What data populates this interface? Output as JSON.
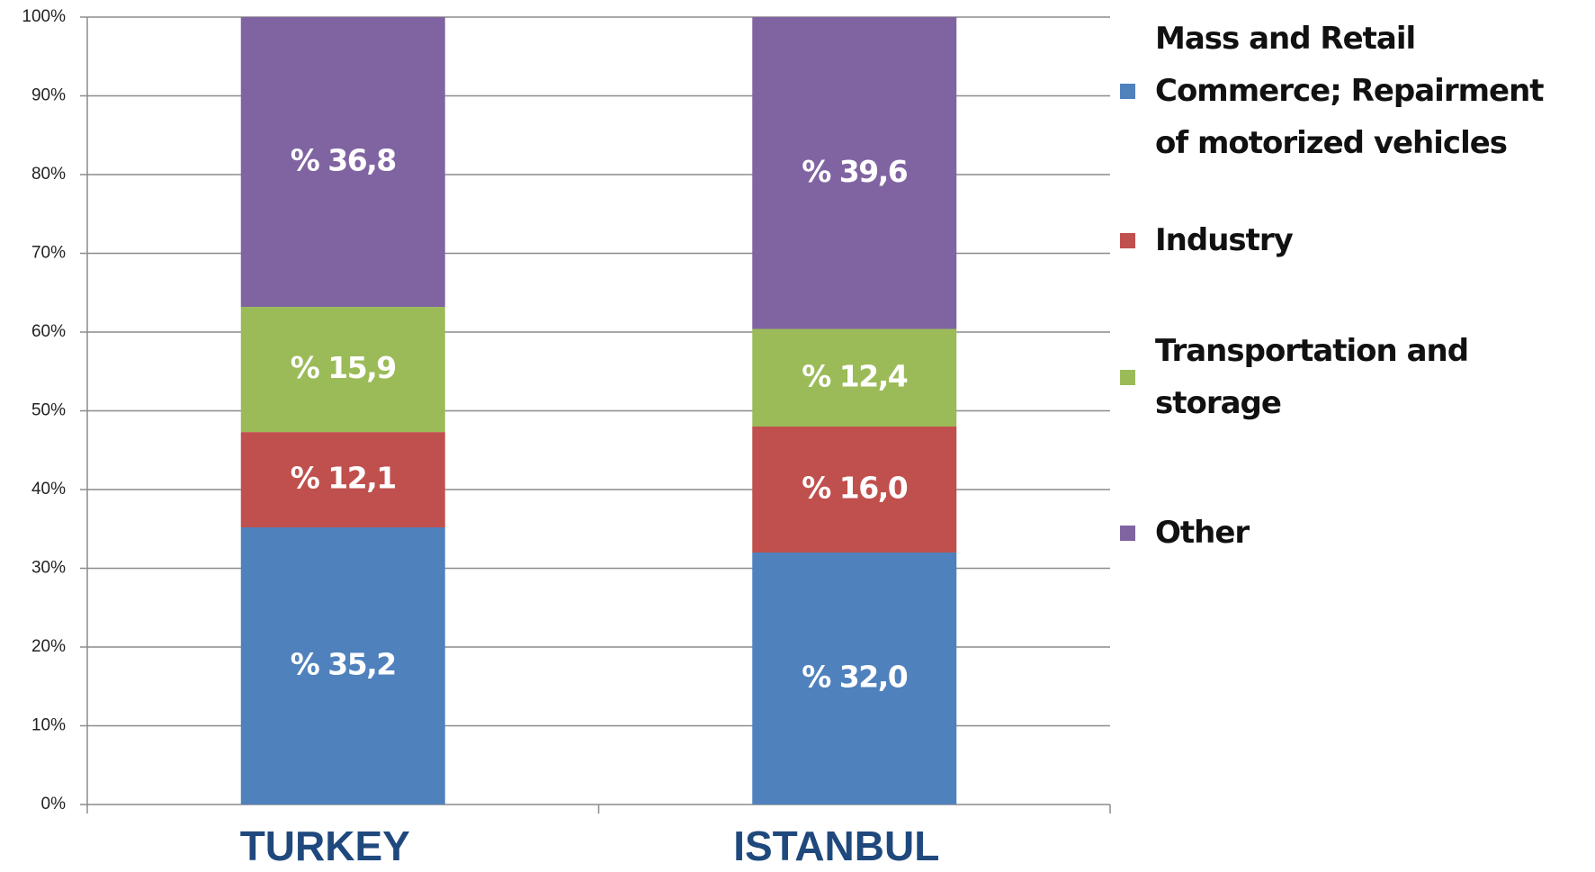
{
  "chart_data": {
    "type": "stacked_bar",
    "categories": [
      "TURKEY",
      "ISTANBUL"
    ],
    "series": [
      {
        "name": "Mass and Retail Commerce; Repairment of motorized vehicles",
        "color": "#4f81bd",
        "values": [
          35.2,
          32.0
        ],
        "value_labels": [
          "% 35,2",
          "% 32,0"
        ]
      },
      {
        "name": "Industry",
        "color": "#c0504d",
        "values": [
          12.1,
          16.0
        ],
        "value_labels": [
          "% 12,1",
          "% 16,0"
        ]
      },
      {
        "name": "Transportation and storage",
        "color": "#9bbb59",
        "values": [
          15.9,
          12.4
        ],
        "value_labels": [
          "% 15,9",
          "% 12,4"
        ]
      },
      {
        "name": "Other",
        "color": "#8064a2",
        "values": [
          36.8,
          39.6
        ],
        "value_labels": [
          "% 36,8",
          "% 39,6"
        ]
      }
    ],
    "ylim": [
      0,
      100
    ],
    "yticks": [
      {
        "value": 0,
        "label": "0%"
      },
      {
        "value": 10,
        "label": "10%"
      },
      {
        "value": 20,
        "label": "20%"
      },
      {
        "value": 30,
        "label": "30%"
      },
      {
        "value": 40,
        "label": "40%"
      },
      {
        "value": 50,
        "label": "50%"
      },
      {
        "value": 60,
        "label": "60%"
      },
      {
        "value": 70,
        "label": "70%"
      },
      {
        "value": 80,
        "label": "80%"
      },
      {
        "value": 90,
        "label": "90%"
      },
      {
        "value": 100,
        "label": "100%"
      }
    ],
    "grid": true,
    "legend": "right"
  }
}
